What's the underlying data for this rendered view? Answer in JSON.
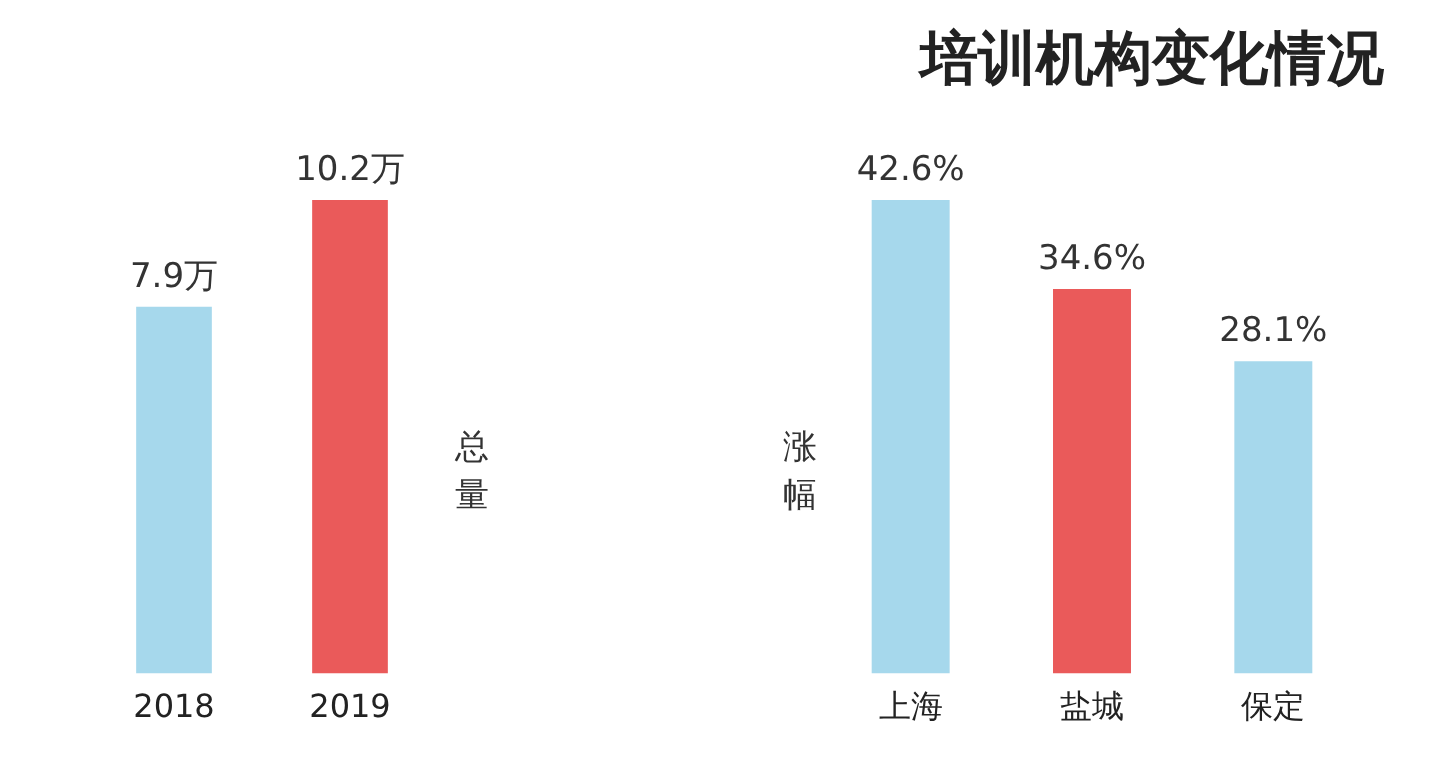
{
  "chart_data": [
    {
      "type": "bar",
      "ylabel": "总量",
      "categories": [
        "2018",
        "2019"
      ],
      "values": [
        7.9,
        10.2
      ],
      "colors": [
        "#a6d8ec",
        "#ea5a5a"
      ],
      "value_labels": [
        "7.9万",
        "10.2万"
      ],
      "grid": false,
      "legend": false
    },
    {
      "type": "bar",
      "title": "培训机构变化情况",
      "ylabel": "涨幅",
      "categories": [
        "上海",
        "盐城",
        "保定"
      ],
      "values": [
        42.6,
        34.6,
        28.1
      ],
      "colors": [
        "#a6d8ec",
        "#ea5a5a",
        "#a6d8ec"
      ],
      "value_labels": [
        "42.6%",
        "34.6%",
        "28.1%"
      ],
      "grid": false,
      "legend": false
    }
  ]
}
